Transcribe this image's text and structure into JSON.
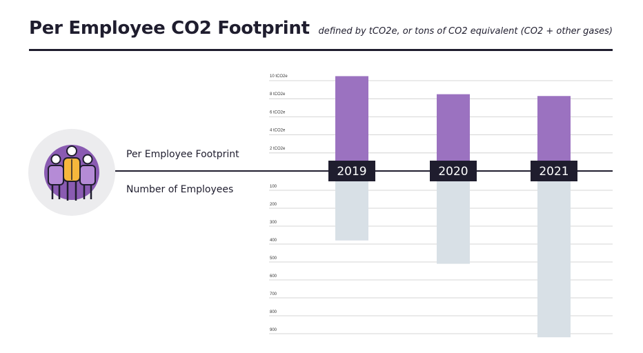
{
  "header": {
    "title": "Per Employee CO2 Footprint",
    "subtitle": "defined by tCO2e, or tons of CO2 equivalent (CO2 + other gases)"
  },
  "labels": {
    "top_row": "Per Employee Footprint",
    "bottom_row": "Number of Employees"
  },
  "icon": {
    "name": "employees-group-icon"
  },
  "colors": {
    "footprint_bar": "#9b72c0",
    "employees_bar": "#d8e0e6",
    "year_badge": "#1f1d2e",
    "year_text": "#ffffff",
    "axis_line": "#1f1d2e",
    "grid": "#c9c9c9"
  },
  "chart_data": {
    "type": "bar",
    "categories": [
      "2019",
      "2020",
      "2021"
    ],
    "series": [
      {
        "name": "Per Employee Footprint",
        "unit": "tCO2e",
        "values": [
          10.5,
          8.5,
          8.3
        ]
      },
      {
        "name": "Number of Employees",
        "values": [
          380,
          510,
          920
        ]
      }
    ],
    "top_axis": {
      "ticks": [
        2,
        4,
        6,
        8,
        10
      ],
      "tick_labels": [
        "2 tCO2e",
        "4 tCO2e",
        "6 tCO2e",
        "8 tCO2e",
        "10 tCO2e"
      ],
      "range": [
        0,
        10.5
      ]
    },
    "bottom_axis": {
      "ticks": [
        100,
        200,
        300,
        400,
        500,
        600,
        700,
        800,
        900
      ],
      "tick_labels": [
        "100",
        "200",
        "300",
        "400",
        "500",
        "600",
        "700",
        "800",
        "900"
      ],
      "range": [
        0,
        920
      ]
    },
    "grid": true
  }
}
